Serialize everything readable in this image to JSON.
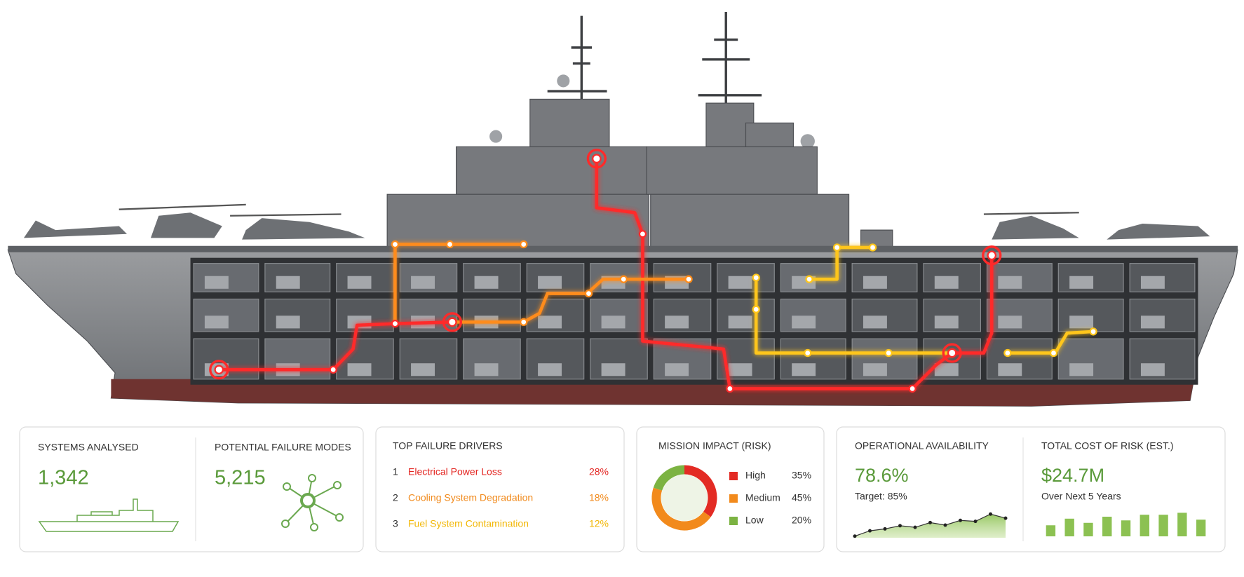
{
  "metrics": [
    {
      "label": "SYSTEMS ANALYSED",
      "value": "1,342"
    },
    {
      "label": "POTENTIAL FAILURE MODES",
      "value": "5,215"
    }
  ],
  "failure_drivers": {
    "title": "TOP FAILURE DRIVERS",
    "rows": [
      {
        "rank": "1",
        "name": "Electrical Power Loss",
        "share": "28%",
        "color": "#e3231f"
      },
      {
        "rank": "2",
        "name": "Cooling System Degradation",
        "share": "18%",
        "color": "#f18a1c"
      },
      {
        "rank": "3",
        "name": "Fuel System Contamination",
        "share": "12%",
        "color": "#f2b705"
      }
    ]
  },
  "mission_impact": {
    "title": "MISSION IMPACT (RISK)",
    "type": "donut",
    "categories": [
      "High",
      "Medium",
      "Low"
    ],
    "values": [
      35,
      45,
      20
    ],
    "value_labels": [
      "35%",
      "45%",
      "20%"
    ],
    "colors": [
      "#e32b24",
      "#f28a1c",
      "#7cb342"
    ]
  },
  "availability": {
    "title": "OPERATIONAL AVAILABILITY",
    "value": "78.6%",
    "note": "Target: 85%",
    "trend": {
      "type": "area",
      "values": [
        5,
        22,
        28,
        38,
        33,
        48,
        40,
        55,
        52,
        75,
        62
      ],
      "ylim": [
        0,
        100
      ],
      "color": "#8cc152"
    }
  },
  "cost_of_risk": {
    "title": "TOTAL COST OF RISK (EST.)",
    "value": "$24.7M",
    "note": "Over Next 5 Years",
    "trend": {
      "type": "bar",
      "values": [
        45,
        72,
        55,
        80,
        65,
        88,
        88,
        96,
        68
      ],
      "ylim": [
        0,
        100
      ],
      "color": "#8cc152"
    }
  }
}
